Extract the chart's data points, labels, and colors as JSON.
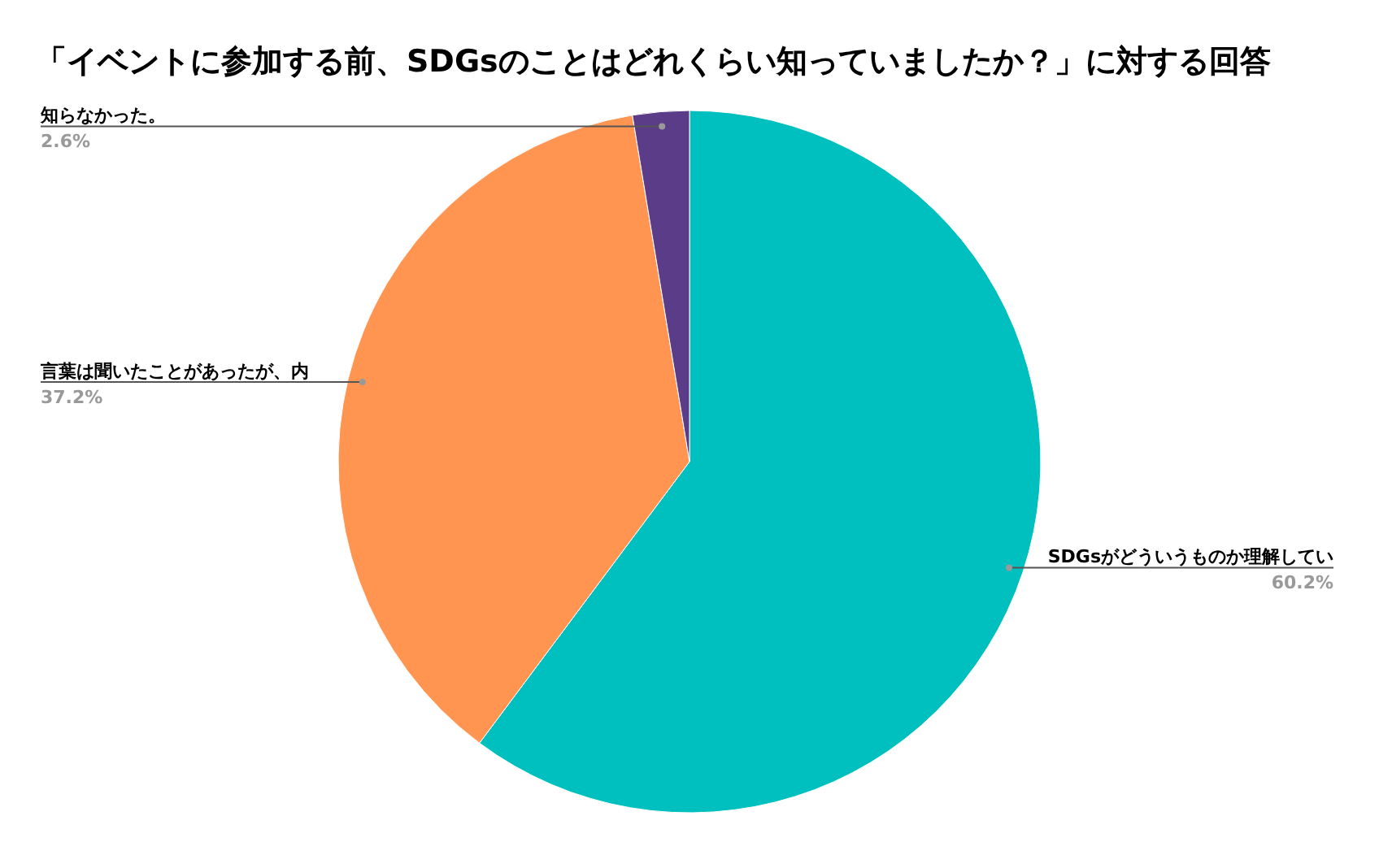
{
  "chart_data": {
    "type": "pie",
    "title": "「イベントに参加する前、SDGsのことはどれくらい知っていましたか？」に対する回答",
    "categories": [
      "SDGsがどういうものか理解してい",
      "言葉は聞いたことがあったが、内",
      "知らなかった。"
    ],
    "values": [
      60.2,
      37.2,
      2.6
    ],
    "colors": [
      "#00bfbf",
      "#ff9551",
      "#5b3c88"
    ],
    "value_labels": [
      "60.2%",
      "37.2%",
      "2.6%"
    ],
    "legend": false
  }
}
